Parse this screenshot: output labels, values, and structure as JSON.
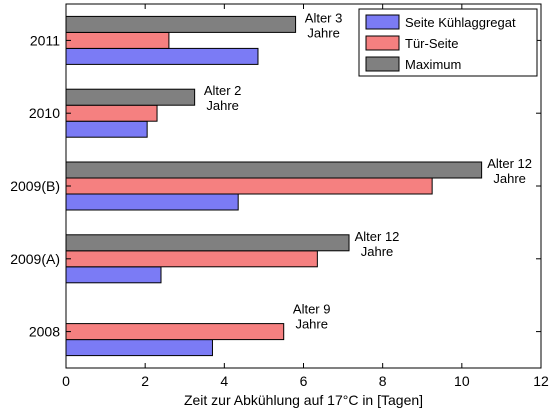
{
  "chart_data": {
    "type": "bar",
    "orientation": "horizontal",
    "categories": [
      "2008",
      "2009(A)",
      "2009(B)",
      "2010",
      "2011"
    ],
    "series": [
      {
        "name": "Seite Kühlaggregat",
        "color": "#7b7bf5",
        "values": [
          3.7,
          2.4,
          4.35,
          2.05,
          4.85
        ]
      },
      {
        "name": "Tür-Seite",
        "color": "#f58080",
        "values": [
          5.5,
          6.35,
          9.25,
          2.3,
          2.6
        ]
      },
      {
        "name": "Maximum",
        "color": "#808080",
        "values": [
          null,
          7.15,
          10.5,
          3.25,
          5.8
        ]
      }
    ],
    "annotations": [
      {
        "category": "2008",
        "lines": [
          "Alter 9",
          "Jahre"
        ]
      },
      {
        "category": "2009(A)",
        "lines": [
          "Alter 12",
          "Jahre"
        ]
      },
      {
        "category": "2009(B)",
        "lines": [
          "Alter 12",
          "Jahre"
        ]
      },
      {
        "category": "2010",
        "lines": [
          "Alter 2",
          "Jahre"
        ]
      },
      {
        "category": "2011",
        "lines": [
          "Alter 3",
          "Jahre"
        ]
      }
    ],
    "xlabel": "Zeit zur Abkühlung auf 17°C in [Tagen]",
    "ylabel": "",
    "title": "",
    "xlim": [
      0,
      12
    ],
    "xticks": [
      0,
      2,
      4,
      6,
      8,
      10,
      12
    ],
    "grid": false,
    "legend_position": "top-right"
  }
}
